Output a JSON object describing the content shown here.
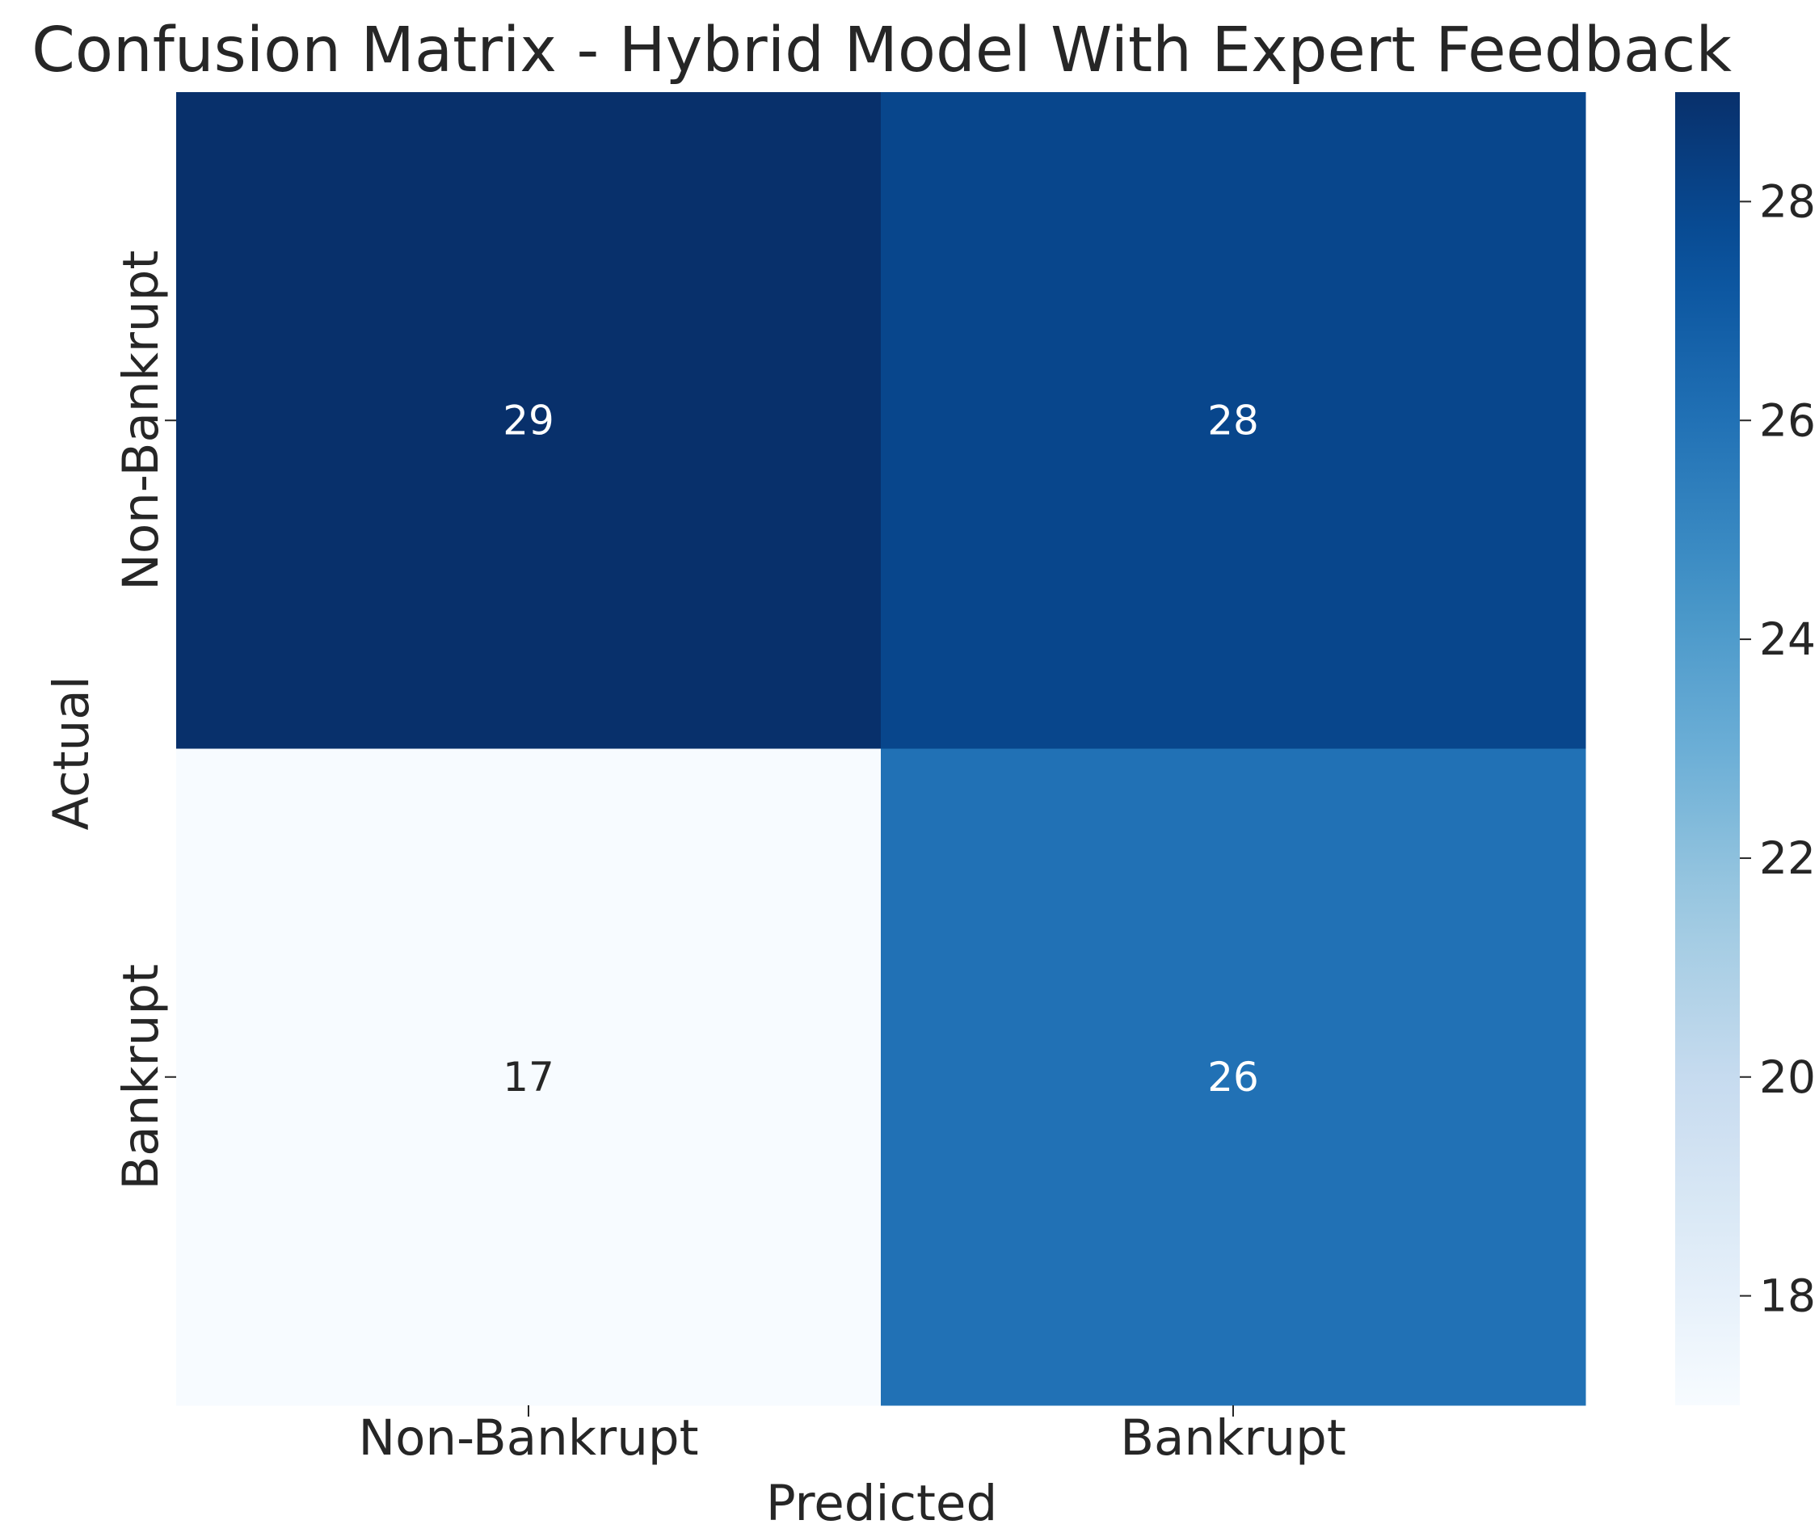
{
  "chart_data": {
    "type": "heatmap",
    "title": "Confusion Matrix - Hybrid Model With Expert Feedback",
    "xlabel": "Predicted",
    "ylabel": "Actual",
    "x_categories": [
      "Non-Bankrupt",
      "Bankrupt"
    ],
    "y_categories": [
      "Non-Bankrupt",
      "Bankrupt"
    ],
    "values": [
      [
        29,
        28
      ],
      [
        17,
        26
      ]
    ],
    "colormap": "Blues",
    "colorbar": {
      "min": 17,
      "max": 29,
      "ticks": [
        18,
        20,
        22,
        24,
        26,
        28
      ]
    },
    "colors": {
      "text_dark_cell": "#ffffff",
      "text_light_cell": "#262626",
      "axis_text": "#262626"
    }
  }
}
